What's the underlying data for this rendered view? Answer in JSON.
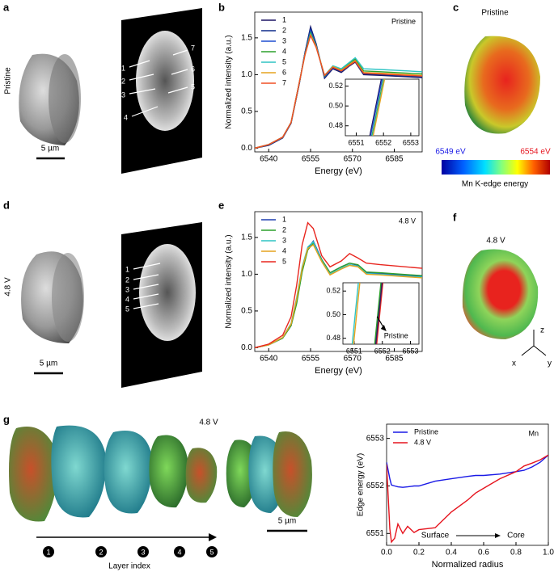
{
  "figure": {
    "panels": [
      "a",
      "b",
      "c",
      "d",
      "e",
      "f",
      "g"
    ],
    "pristine": "Pristine",
    "charged": "4.8 V",
    "scale": "5 µm",
    "slices_a": [
      "1",
      "2",
      "3",
      "4",
      "5",
      "6",
      "7"
    ],
    "slices_d": [
      "1",
      "2",
      "3",
      "4",
      "5"
    ],
    "colorbar_min": "6549 eV",
    "colorbar_max": "6554 eV",
    "colorbar_title": "Mn K-edge energy",
    "axes": [
      "z",
      "x",
      "y"
    ],
    "layers": [
      "1",
      "2",
      "3",
      "4",
      "5"
    ],
    "layer_axis": "Layer index"
  },
  "chart_data": [
    {
      "type": "line",
      "xlabel": "Energy (eV)",
      "ylabel": "Normalized intensity (a.u.)",
      "annotation": "Pristine",
      "legend": "upper left",
      "x": [
        6535,
        6540,
        6545,
        6548,
        6551,
        6553,
        6555,
        6557,
        6560,
        6563,
        6566,
        6569,
        6571,
        6574,
        6580,
        6595
      ],
      "series": [
        {
          "name": "1",
          "color": "#1b1464",
          "values": [
            0.0,
            0.04,
            0.14,
            0.34,
            0.88,
            1.3,
            1.65,
            1.42,
            0.95,
            1.08,
            1.03,
            1.12,
            1.17,
            1.0,
            0.99,
            0.96
          ]
        },
        {
          "name": "2",
          "color": "#0d2a8a",
          "values": [
            0.0,
            0.04,
            0.14,
            0.34,
            0.89,
            1.3,
            1.63,
            1.41,
            0.96,
            1.09,
            1.04,
            1.13,
            1.18,
            1.01,
            1.0,
            0.97
          ]
        },
        {
          "name": "3",
          "color": "#1f4fd1",
          "values": [
            0.0,
            0.05,
            0.15,
            0.35,
            0.9,
            1.29,
            1.6,
            1.4,
            0.97,
            1.1,
            1.05,
            1.14,
            1.19,
            1.02,
            1.01,
            0.98
          ]
        },
        {
          "name": "4",
          "color": "#2ca02c",
          "values": [
            0.0,
            0.05,
            0.15,
            0.35,
            0.9,
            1.28,
            1.57,
            1.39,
            0.98,
            1.11,
            1.07,
            1.16,
            1.21,
            1.05,
            1.04,
            1.01
          ]
        },
        {
          "name": "5",
          "color": "#2ec4c4",
          "values": [
            0.0,
            0.05,
            0.15,
            0.35,
            0.9,
            1.27,
            1.55,
            1.38,
            0.99,
            1.12,
            1.08,
            1.17,
            1.23,
            1.08,
            1.07,
            1.04
          ]
        },
        {
          "name": "6",
          "color": "#e6a31e",
          "values": [
            0.0,
            0.05,
            0.15,
            0.35,
            0.9,
            1.27,
            1.54,
            1.38,
            0.99,
            1.11,
            1.06,
            1.14,
            1.19,
            1.03,
            1.02,
            0.99
          ]
        },
        {
          "name": "7",
          "color": "#f04e23",
          "values": [
            0.0,
            0.05,
            0.15,
            0.35,
            0.9,
            1.27,
            1.53,
            1.37,
            0.99,
            1.1,
            1.05,
            1.13,
            1.18,
            1.02,
            1.01,
            0.98
          ]
        }
      ],
      "xlim": [
        6535,
        6595
      ],
      "ylim": [
        -0.05,
        1.85
      ],
      "xticks": [
        6540,
        6555,
        6570,
        6585
      ],
      "yticks": [
        {
          "value": 0,
          "label": "0.0"
        },
        0.5,
        {
          "value": 1,
          "label": "1.0"
        },
        1.5
      ]
    },
    {
      "type": "line",
      "legend": "none",
      "series": [
        {
          "color": "#1b1464",
          "x": [
            6551.5,
            6551.92
          ],
          "values": [
            0.47,
            0.527
          ]
        },
        {
          "color": "#1f4fd1",
          "x": [
            6551.53,
            6551.95
          ],
          "values": [
            0.47,
            0.527
          ]
        },
        {
          "color": "#2ca02c",
          "x": [
            6551.58,
            6552.0
          ],
          "values": [
            0.47,
            0.527
          ]
        },
        {
          "color": "#2ec4c4",
          "x": [
            6551.6,
            6552.02
          ],
          "values": [
            0.47,
            0.527
          ]
        },
        {
          "color": "#e6a31e",
          "x": [
            6551.62,
            6552.04
          ],
          "values": [
            0.47,
            0.527
          ]
        }
      ],
      "xlim": [
        6550.6,
        6553.3
      ],
      "ylim": [
        0.47,
        0.527
      ],
      "xticks": [
        6551,
        6552,
        6553
      ],
      "yticks": [
        0.48,
        {
          "value": 0.5,
          "label": "0.50"
        },
        0.52
      ]
    },
    {
      "type": "line",
      "xlabel": "Energy (eV)",
      "ylabel": "Normalized intensity (a.u.)",
      "annotation": "4.8 V",
      "legend": "upper left",
      "x": [
        6535,
        6540,
        6545,
        6548,
        6550,
        6552,
        6554,
        6556,
        6559,
        6562,
        6566,
        6569,
        6572,
        6575,
        6580,
        6595
      ],
      "series": [
        {
          "name": "1",
          "color": "#1f3fb0",
          "values": [
            0.0,
            0.04,
            0.13,
            0.3,
            0.62,
            1.05,
            1.35,
            1.45,
            1.2,
            1.02,
            1.1,
            1.15,
            1.12,
            1.02,
            1.01,
            0.97
          ]
        },
        {
          "name": "2",
          "color": "#2ca02c",
          "values": [
            0.0,
            0.04,
            0.13,
            0.3,
            0.6,
            1.03,
            1.33,
            1.42,
            1.2,
            1.02,
            1.1,
            1.15,
            1.13,
            1.03,
            1.02,
            0.98
          ]
        },
        {
          "name": "3",
          "color": "#2ec4c4",
          "values": [
            0.0,
            0.04,
            0.14,
            0.33,
            0.68,
            1.1,
            1.37,
            1.44,
            1.18,
            1.0,
            1.08,
            1.13,
            1.11,
            1.01,
            1.0,
            0.96
          ]
        },
        {
          "name": "4",
          "color": "#e6a31e",
          "values": [
            0.0,
            0.04,
            0.14,
            0.32,
            0.66,
            1.08,
            1.35,
            1.4,
            1.17,
            0.99,
            1.07,
            1.12,
            1.1,
            1.0,
            0.99,
            0.95
          ]
        },
        {
          "name": "5",
          "color": "#e8261f",
          "values": [
            0.0,
            0.05,
            0.17,
            0.42,
            0.85,
            1.4,
            1.7,
            1.62,
            1.25,
            1.1,
            1.18,
            1.28,
            1.22,
            1.15,
            1.13,
            1.08
          ]
        }
      ],
      "xlim": [
        6535,
        6595
      ],
      "ylim": [
        -0.05,
        1.85
      ],
      "xticks": [
        6540,
        6555,
        6570,
        6585
      ],
      "yticks": [
        {
          "value": 0,
          "label": "0.0"
        },
        0.5,
        {
          "value": 1,
          "label": "1.0"
        },
        1.5
      ]
    },
    {
      "type": "line",
      "legend": "none",
      "annotation": "Pristine",
      "series": [
        {
          "color": "#1f3fb0",
          "x": [
            6551.75,
            6551.97
          ],
          "values": [
            0.475,
            0.527
          ]
        },
        {
          "color": "#2ca02c",
          "x": [
            6551.73,
            6551.95
          ],
          "values": [
            0.475,
            0.527
          ]
        },
        {
          "color": "#2ec4c4",
          "x": [
            6550.93,
            6551.15
          ],
          "values": [
            0.475,
            0.527
          ]
        },
        {
          "color": "#e6a31e",
          "x": [
            6550.98,
            6551.2
          ],
          "values": [
            0.475,
            0.527
          ]
        },
        {
          "color": "#e8261f",
          "x": [
            6551.8,
            6552.02
          ],
          "values": [
            0.475,
            0.527
          ]
        },
        {
          "color": "#3a1a5e",
          "x": [
            6551.77,
            6551.99
          ],
          "values": [
            0.475,
            0.527
          ]
        }
      ],
      "xlim": [
        6550.6,
        6553.3
      ],
      "ylim": [
        0.475,
        0.527
      ],
      "xticks": [
        6551,
        6552,
        6553
      ],
      "yticks": [
        0.48,
        {
          "value": 0.5,
          "label": "0.50"
        },
        0.52
      ]
    },
    {
      "type": "line",
      "xlabel": "Normalized radius",
      "ylabel": "Edge energy (eV)",
      "annotations": [
        "Mn",
        "Surface",
        "Core"
      ],
      "legend": "upper left",
      "x": [
        0,
        0.02,
        0.03,
        0.05,
        0.07,
        0.1,
        0.13,
        0.17,
        0.2,
        0.3,
        0.4,
        0.5,
        0.55,
        0.6,
        0.7,
        0.8,
        0.85,
        0.9,
        0.95,
        1.0
      ],
      "series": [
        {
          "name": "Pristine",
          "color": "#1a1ae6",
          "values": [
            6552.5,
            6552.15,
            6552.02,
            6552.0,
            6551.98,
            6551.97,
            6551.98,
            6552.0,
            6552.0,
            6552.1,
            6552.15,
            6552.2,
            6552.22,
            6552.22,
            6552.25,
            6552.3,
            6552.33,
            6552.4,
            6552.5,
            6552.65
          ]
        },
        {
          "name": "4.8 V",
          "color": "#e6141e",
          "values": [
            6552.45,
            6551.1,
            6550.82,
            6550.9,
            6551.2,
            6551.0,
            6551.15,
            6551.02,
            6551.08,
            6551.12,
            6551.45,
            6551.7,
            6551.85,
            6551.95,
            6552.15,
            6552.3,
            6552.42,
            6552.48,
            6552.55,
            6552.65
          ]
        }
      ],
      "xlim": [
        0,
        1
      ],
      "ylim": [
        6550.75,
        6553.3
      ],
      "xticks": [
        {
          "value": 0,
          "label": "0.0"
        },
        0.2,
        0.4,
        0.6,
        0.8,
        {
          "value": 1,
          "label": "1.0"
        }
      ],
      "yticks": [
        6551,
        6552,
        6553
      ]
    }
  ]
}
